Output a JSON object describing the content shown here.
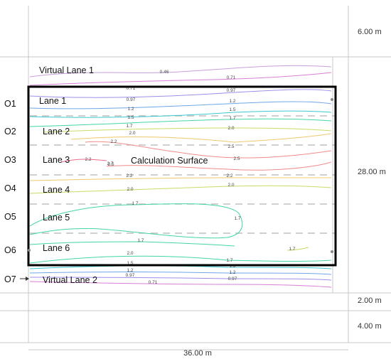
{
  "lanes": [
    "Lane 1",
    "Lane 2",
    "Lane 3",
    "Lane 4",
    "Lane 5",
    "Lane 6"
  ],
  "virtual_lanes": [
    "Virtual Lane 1",
    "Virtual Lane 2"
  ],
  "observers": [
    "O1",
    "O2",
    "O3",
    "O4",
    "O5",
    "O6",
    "O7"
  ],
  "surface_label": "Calculation Surface",
  "dimensions": {
    "top": "6.00 m",
    "middle": "28.00 m",
    "lower": "2.00 m",
    "bottom": "4.00 m",
    "width": "36.00 m"
  },
  "contour_labels": [
    "0.46",
    "0.71",
    "0.71",
    "0.97",
    "0.97",
    "1.2",
    "1.2",
    "1.5",
    "1.5",
    "1.7",
    "1.7",
    "2.0",
    "2.0",
    "2.2",
    "2.5",
    "2.2",
    "2.7",
    "2.5",
    "2.5",
    "2.2",
    "2.2",
    "2.0",
    "2.0",
    "1.7",
    "1.7",
    "1.7",
    "2.0",
    "1.7",
    "1.7",
    "1.5",
    "1.5",
    "1.2",
    "1.2",
    "0.97",
    "0.97",
    "0.71"
  ],
  "colors": {
    "frame": "#c8c8c8",
    "surface_border": "#000000",
    "lane_divider": "#b4b4b4",
    "contour_0_46": "#c8a0dc",
    "contour_0_71": "#d77fd7",
    "contour_0_97": "#a08ce6",
    "contour_1_2": "#6fa6e6",
    "contour_1_5": "#3cc8d2",
    "contour_1_7": "#42d6a0",
    "contour_2_0": "#c8dc64",
    "contour_2_2": "#f0c86e",
    "contour_2_5": "#f08c8c",
    "contour_2_7": "#ee6a8a"
  }
}
